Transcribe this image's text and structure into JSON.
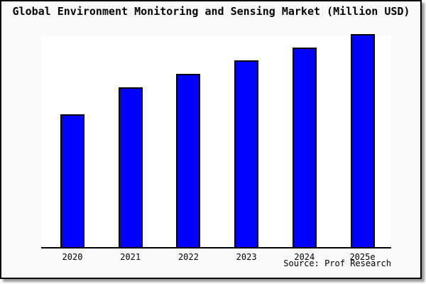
{
  "page": {
    "outer_background": "#fafafa",
    "plot_background": "#ffffff",
    "frame_border_color": "#000000",
    "shadow_color": "#999999"
  },
  "chart_data": {
    "type": "bar",
    "title": "Global Environment Monitoring and Sensing Market (Million USD)",
    "categories": [
      "2020",
      "2021",
      "2022",
      "2023",
      "2024",
      "2025e"
    ],
    "values": [
      62.4,
      75.1,
      81.4,
      87.8,
      93.8,
      100
    ],
    "values_note": "y-axis has no labels or gridlines; values are bar heights normalized to the tallest bar (2025e) = 100",
    "xlabel": "",
    "ylabel": "",
    "ylim": [
      0,
      100
    ],
    "grid": false,
    "legend": null,
    "bar_color": "#0000ff",
    "bar_edge_color": "#000000",
    "axis_color": "#000000",
    "source": "Source: Prof Research"
  }
}
